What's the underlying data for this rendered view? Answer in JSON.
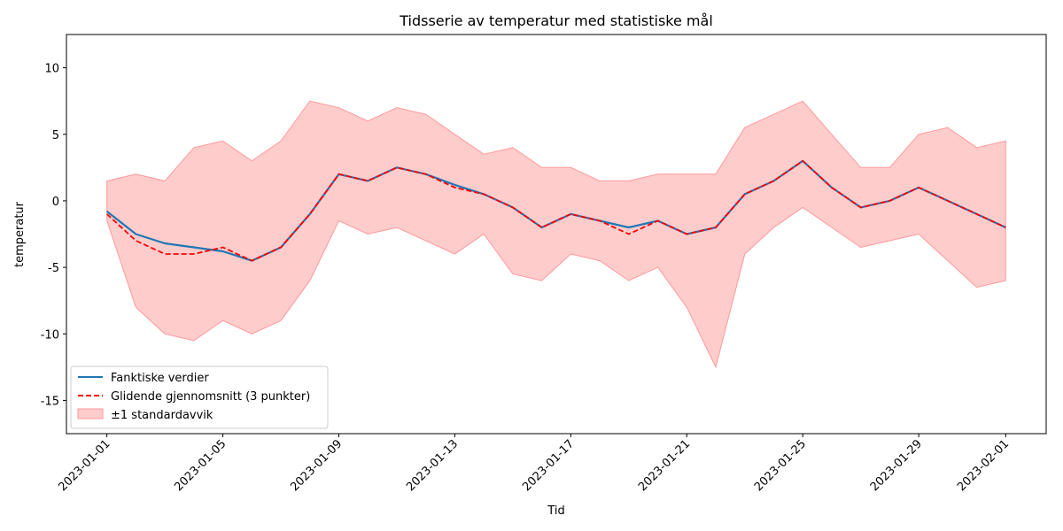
{
  "chart_data": {
    "type": "line",
    "title": "Tidsserie av temperatur med statistiske mål",
    "xlabel": "Tid",
    "ylabel": "temperatur",
    "xlim": [
      "2023-01-01",
      "2023-02-01"
    ],
    "ylim": [
      -17.5,
      12.5
    ],
    "x_ticks": [
      "2023-01-01",
      "2023-01-05",
      "2023-01-09",
      "2023-01-13",
      "2023-01-17",
      "2023-01-21",
      "2023-01-25",
      "2023-01-29",
      "2023-02-01"
    ],
    "y_ticks": [
      -15,
      -10,
      -5,
      0,
      5,
      10
    ],
    "grid": false,
    "legend_position": "lower-left",
    "colors": {
      "actual": "#1f77b4",
      "rolling": "#ff0000",
      "band": "#ff9999"
    },
    "series": [
      {
        "name": "Fanktiske verdier",
        "style": "solid",
        "points": [
          [
            "2023-01-01",
            -0.8
          ],
          [
            "2023-01-02",
            -2.5
          ],
          [
            "2023-01-03",
            -3.2
          ],
          [
            "2023-01-04",
            -3.5
          ],
          [
            "2023-01-05",
            -3.8
          ],
          [
            "2023-01-06",
            -4.5
          ],
          [
            "2023-01-07",
            -3.5
          ],
          [
            "2023-01-08",
            -1.0
          ],
          [
            "2023-01-09",
            2.0
          ],
          [
            "2023-01-10",
            1.5
          ],
          [
            "2023-01-11",
            2.5
          ],
          [
            "2023-01-12",
            2.0
          ],
          [
            "2023-01-13",
            1.2
          ],
          [
            "2023-01-14",
            0.5
          ],
          [
            "2023-01-15",
            -0.5
          ],
          [
            "2023-01-16",
            -2.0
          ],
          [
            "2023-01-17",
            -1.0
          ],
          [
            "2023-01-18",
            -1.5
          ],
          [
            "2023-01-19",
            -2.0
          ],
          [
            "2023-01-20",
            -1.5
          ],
          [
            "2023-01-21",
            -2.5
          ],
          [
            "2023-01-22",
            -2.0
          ],
          [
            "2023-01-23",
            0.5
          ],
          [
            "2023-01-24",
            1.5
          ],
          [
            "2023-01-25",
            3.0
          ],
          [
            "2023-01-26",
            1.0
          ],
          [
            "2023-01-27",
            -0.5
          ],
          [
            "2023-01-28",
            0.0
          ],
          [
            "2023-01-29",
            1.0
          ],
          [
            "2023-01-30",
            0.0
          ],
          [
            "2023-01-31",
            -1.0
          ],
          [
            "2023-02-01",
            -2.0
          ]
        ]
      },
      {
        "name": "Glidende gjennomsnitt (3 punkter)",
        "style": "dashed",
        "points": [
          [
            "2023-01-01",
            -1.0
          ],
          [
            "2023-01-02",
            -3.0
          ],
          [
            "2023-01-03",
            -4.0
          ],
          [
            "2023-01-04",
            -4.0
          ],
          [
            "2023-01-05",
            -3.5
          ],
          [
            "2023-01-06",
            -4.5
          ],
          [
            "2023-01-07",
            -3.5
          ],
          [
            "2023-01-08",
            -1.0
          ],
          [
            "2023-01-09",
            2.0
          ],
          [
            "2023-01-10",
            1.5
          ],
          [
            "2023-01-11",
            2.5
          ],
          [
            "2023-01-12",
            2.0
          ],
          [
            "2023-01-13",
            1.0
          ],
          [
            "2023-01-14",
            0.5
          ],
          [
            "2023-01-15",
            -0.5
          ],
          [
            "2023-01-16",
            -2.0
          ],
          [
            "2023-01-17",
            -1.0
          ],
          [
            "2023-01-18",
            -1.5
          ],
          [
            "2023-01-19",
            -2.5
          ],
          [
            "2023-01-20",
            -1.5
          ],
          [
            "2023-01-21",
            -2.5
          ],
          [
            "2023-01-22",
            -2.0
          ],
          [
            "2023-01-23",
            0.5
          ],
          [
            "2023-01-24",
            1.5
          ],
          [
            "2023-01-25",
            3.0
          ],
          [
            "2023-01-26",
            1.0
          ],
          [
            "2023-01-27",
            -0.5
          ],
          [
            "2023-01-28",
            0.0
          ],
          [
            "2023-01-29",
            1.0
          ],
          [
            "2023-01-30",
            0.0
          ],
          [
            "2023-01-31",
            -1.0
          ],
          [
            "2023-02-01",
            -2.0
          ]
        ]
      }
    ],
    "band": {
      "name": "±1 standardavvik",
      "points": [
        [
          "2023-01-01",
          -1.5,
          1.5
        ],
        [
          "2023-01-02",
          -8.0,
          2.0
        ],
        [
          "2023-01-03",
          -10.0,
          1.5
        ],
        [
          "2023-01-04",
          -10.5,
          4.0
        ],
        [
          "2023-01-05",
          -9.0,
          4.5
        ],
        [
          "2023-01-06",
          -10.0,
          3.0
        ],
        [
          "2023-01-07",
          -9.0,
          4.5
        ],
        [
          "2023-01-08",
          -6.0,
          7.5
        ],
        [
          "2023-01-09",
          -1.5,
          7.0
        ],
        [
          "2023-01-10",
          -2.5,
          6.0
        ],
        [
          "2023-01-11",
          -2.0,
          7.0
        ],
        [
          "2023-01-12",
          -3.0,
          6.5
        ],
        [
          "2023-01-13",
          -4.0,
          5.0
        ],
        [
          "2023-01-14",
          -2.5,
          3.5
        ],
        [
          "2023-01-15",
          -5.5,
          4.0
        ],
        [
          "2023-01-16",
          -6.0,
          2.5
        ],
        [
          "2023-01-17",
          -4.0,
          2.5
        ],
        [
          "2023-01-18",
          -4.5,
          1.5
        ],
        [
          "2023-01-19",
          -6.0,
          1.5
        ],
        [
          "2023-01-20",
          -5.0,
          2.0
        ],
        [
          "2023-01-21",
          -8.0,
          2.0
        ],
        [
          "2023-01-22",
          -12.5,
          2.0
        ],
        [
          "2023-01-23",
          -4.0,
          5.5
        ],
        [
          "2023-01-24",
          -2.0,
          6.5
        ],
        [
          "2023-01-25",
          -0.5,
          7.5
        ],
        [
          "2023-01-26",
          -2.0,
          5.0
        ],
        [
          "2023-01-27",
          -3.5,
          2.5
        ],
        [
          "2023-01-28",
          -3.0,
          2.5
        ],
        [
          "2023-01-29",
          -2.5,
          5.0
        ],
        [
          "2023-01-30",
          -4.5,
          5.5
        ],
        [
          "2023-01-31",
          -6.5,
          4.0
        ],
        [
          "2023-02-01",
          -6.0,
          4.5
        ]
      ]
    }
  }
}
